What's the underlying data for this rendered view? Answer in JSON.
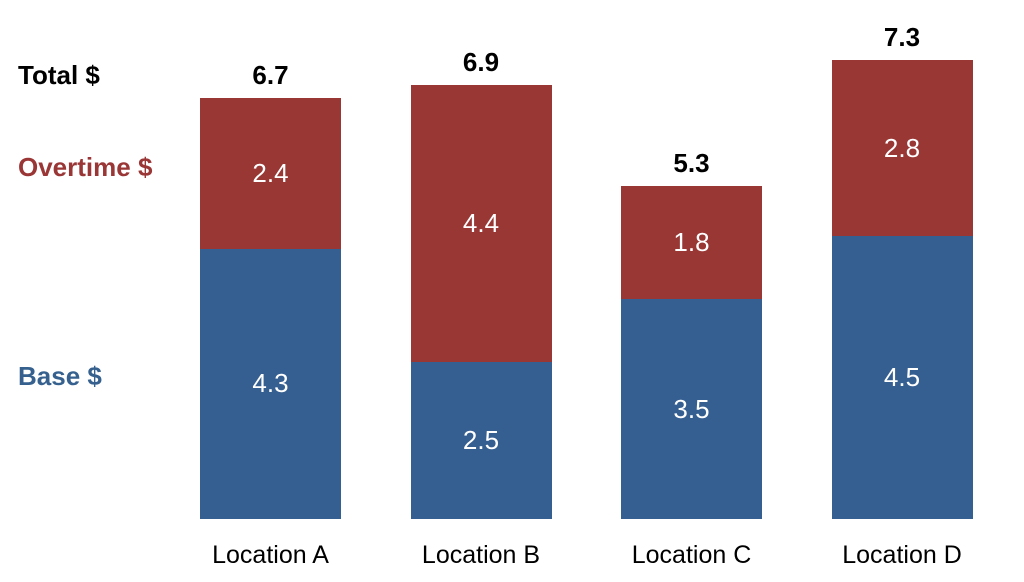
{
  "legend": {
    "total": "Total $",
    "overtime": "Overtime $",
    "base": "Base $"
  },
  "colors": {
    "base_fill": "#365f91",
    "overtime_fill": "#993735",
    "total_text": "#000000",
    "overtime_text": "#9a3636",
    "base_text": "#36618f",
    "value_text": "#ffffff",
    "background": "#ffffff"
  },
  "chart_data": {
    "type": "bar",
    "stacked": true,
    "title": "",
    "xlabel": "",
    "ylabel": "",
    "categories": [
      "Location A",
      "Location B",
      "Location C",
      "Location D"
    ],
    "series": [
      {
        "name": "Base $",
        "color": "#365f91",
        "values": [
          4.3,
          2.5,
          3.5,
          4.5
        ]
      },
      {
        "name": "Overtime $",
        "color": "#993735",
        "values": [
          2.4,
          4.4,
          1.8,
          2.8
        ]
      }
    ],
    "totals": [
      6.7,
      6.9,
      5.3,
      7.3
    ],
    "ylim": [
      0,
      7.5
    ],
    "grid": false,
    "axes_visible": false,
    "legend_position": "left",
    "value_labels": "inside-white",
    "total_labels": "above-bold"
  }
}
